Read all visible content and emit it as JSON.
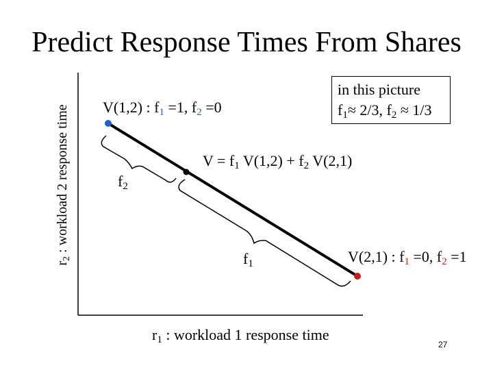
{
  "title": "Predict Response Times From Shares",
  "y_axis_label": {
    "text": "r",
    "sub": "2",
    "rest": " : workload 2 response time"
  },
  "x_axis_label": {
    "text": "r",
    "sub": "1",
    "rest": " : workload 1 response time"
  },
  "point_v12": {
    "label": "V(1,2) : f",
    "sub1": "1",
    "mid": " =1,  f",
    "sub2": "2",
    "end": " =0",
    "color": "#1f5fcf"
  },
  "point_v21": {
    "label": "V(2,1) : f",
    "sub1": "1",
    "mid": " =0,  f",
    "sub2": "2",
    "end": " =1",
    "color": "#d01818"
  },
  "combination": {
    "label": "V = f",
    "sub1": "1",
    "mid": " V(1,2) + f",
    "sub2": "2",
    "end": " V(2,1)"
  },
  "brace_f2": {
    "text": "f",
    "sub": "2"
  },
  "brace_f1": {
    "text": "f",
    "sub": "1"
  },
  "note_box": {
    "line1": "in this picture",
    "line2_a": "f",
    "line2_sub1": "1",
    "line2_b": "≈ 2/3,  f",
    "line2_sub2": "2",
    "line2_c": " ≈ 1/3"
  },
  "page_number": "27"
}
